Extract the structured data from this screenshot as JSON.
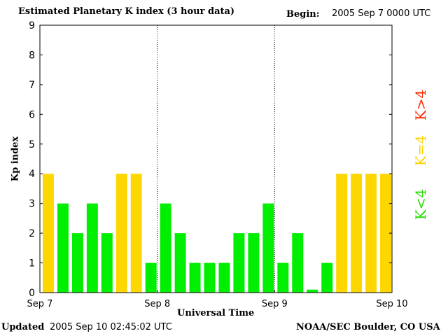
{
  "header": {
    "title": "Estimated Planetary K index (3 hour data)",
    "begin_label": "Begin:",
    "begin_value": "2005 Sep 7 0000 UTC"
  },
  "footer": {
    "updated_label": "Updated",
    "updated_value": "2005 Sep 10 02:45:02 UTC",
    "credit": "NOAA/SEC Boulder, CO USA"
  },
  "legend": {
    "above": "K>4",
    "equal": "K=4",
    "below": "K<4"
  },
  "colors": {
    "below": "#00ee00",
    "equal": "#ffd700",
    "above": "#ff2a00"
  },
  "chart_data": {
    "type": "bar",
    "xlabel": "Universal Time",
    "ylabel": "Kp index",
    "ylim": [
      0,
      9
    ],
    "yticks": [
      0,
      1,
      2,
      3,
      4,
      5,
      6,
      7,
      8,
      9
    ],
    "day_labels": [
      "Sep 7",
      "Sep 8",
      "Sep 9",
      "Sep 10"
    ],
    "day_dividers": true,
    "values": [
      4,
      3,
      2,
      3,
      2,
      4,
      4,
      1,
      3,
      2,
      1,
      1,
      1,
      2,
      2,
      3,
      1,
      2,
      0.1,
      1,
      4,
      4,
      4,
      4
    ]
  }
}
